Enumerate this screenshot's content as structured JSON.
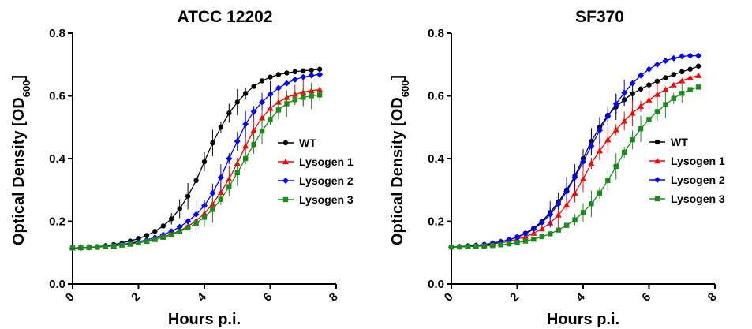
{
  "chart_data": [
    {
      "type": "line",
      "title": "ATCC 12202",
      "xlabel": "Hours p.i.",
      "ylabel": "Optical Density [OD",
      "ylabel_sub": "600",
      "ylabel_close": "]",
      "xlim": [
        0,
        8
      ],
      "ylim": [
        0,
        0.8
      ],
      "xticks": [
        "0",
        "2",
        "4",
        "6",
        "8"
      ],
      "yticks": [
        "0.0",
        "0.2",
        "0.4",
        "0.6",
        "0.8"
      ],
      "grid": false,
      "legend": "right",
      "x": [
        0,
        0.25,
        0.5,
        0.75,
        1,
        1.25,
        1.5,
        1.75,
        2,
        2.25,
        2.5,
        2.75,
        3,
        3.25,
        3.5,
        3.75,
        4,
        4.25,
        4.5,
        4.75,
        5,
        5.25,
        5.5,
        5.75,
        6,
        6.25,
        6.5,
        6.75,
        7,
        7.25,
        7.5
      ],
      "series": [
        {
          "name": "WT",
          "color": "#000000",
          "marker": "circle",
          "values": [
            0.115,
            0.116,
            0.117,
            0.119,
            0.122,
            0.126,
            0.131,
            0.137,
            0.145,
            0.155,
            0.168,
            0.185,
            0.208,
            0.24,
            0.28,
            0.33,
            0.39,
            0.45,
            0.5,
            0.545,
            0.58,
            0.608,
            0.63,
            0.648,
            0.66,
            0.668,
            0.673,
            0.677,
            0.68,
            0.682,
            0.685
          ]
        },
        {
          "name": "Lysogen 1",
          "color": "#ff0000",
          "marker": "triangle",
          "values": [
            0.115,
            0.116,
            0.117,
            0.118,
            0.12,
            0.122,
            0.125,
            0.128,
            0.132,
            0.137,
            0.143,
            0.15,
            0.159,
            0.17,
            0.184,
            0.202,
            0.225,
            0.255,
            0.292,
            0.335,
            0.385,
            0.44,
            0.49,
            0.53,
            0.56,
            0.58,
            0.595,
            0.605,
            0.612,
            0.617,
            0.62
          ]
        },
        {
          "name": "Lysogen 2",
          "color": "#0000ff",
          "marker": "diamond",
          "values": [
            0.115,
            0.116,
            0.117,
            0.118,
            0.12,
            0.123,
            0.126,
            0.13,
            0.135,
            0.141,
            0.148,
            0.157,
            0.168,
            0.182,
            0.2,
            0.222,
            0.25,
            0.29,
            0.34,
            0.4,
            0.455,
            0.51,
            0.55,
            0.58,
            0.605,
            0.625,
            0.64,
            0.652,
            0.66,
            0.665,
            0.668
          ]
        },
        {
          "name": "Lysogen 3",
          "color": "#1a8c1a",
          "marker": "square",
          "values": [
            0.115,
            0.116,
            0.117,
            0.118,
            0.119,
            0.121,
            0.124,
            0.127,
            0.131,
            0.136,
            0.142,
            0.149,
            0.157,
            0.167,
            0.179,
            0.194,
            0.213,
            0.238,
            0.27,
            0.31,
            0.355,
            0.4,
            0.445,
            0.488,
            0.525,
            0.555,
            0.575,
            0.588,
            0.595,
            0.6,
            0.603
          ]
        }
      ]
    },
    {
      "type": "line",
      "title": "SF370",
      "xlabel": "Hours p.i.",
      "ylabel": "Optical Density [OD",
      "ylabel_sub": "600",
      "ylabel_close": "]",
      "xlim": [
        0,
        8
      ],
      "ylim": [
        0,
        0.8
      ],
      "xticks": [
        "0",
        "2",
        "4",
        "6",
        "8"
      ],
      "yticks": [
        "0.0",
        "0.2",
        "0.4",
        "0.6",
        "0.8"
      ],
      "grid": false,
      "legend": "right",
      "x": [
        0,
        0.25,
        0.5,
        0.75,
        1,
        1.25,
        1.5,
        1.75,
        2,
        2.25,
        2.5,
        2.75,
        3,
        3.25,
        3.5,
        3.75,
        4,
        4.25,
        4.5,
        4.75,
        5,
        5.25,
        5.5,
        5.75,
        6,
        6.25,
        6.5,
        6.75,
        7,
        7.25,
        7.5
      ],
      "series": [
        {
          "name": "WT",
          "color": "#000000",
          "marker": "circle",
          "values": [
            0.118,
            0.119,
            0.121,
            0.123,
            0.126,
            0.13,
            0.135,
            0.141,
            0.15,
            0.162,
            0.178,
            0.2,
            0.228,
            0.262,
            0.3,
            0.345,
            0.4,
            0.455,
            0.5,
            0.538,
            0.565,
            0.588,
            0.607,
            0.622,
            0.635,
            0.647,
            0.658,
            0.668,
            0.677,
            0.685,
            0.695
          ]
        },
        {
          "name": "Lysogen 1",
          "color": "#ff0000",
          "marker": "triangle",
          "values": [
            0.118,
            0.119,
            0.12,
            0.122,
            0.124,
            0.127,
            0.131,
            0.136,
            0.143,
            0.151,
            0.162,
            0.176,
            0.195,
            0.22,
            0.252,
            0.29,
            0.335,
            0.385,
            0.425,
            0.46,
            0.492,
            0.52,
            0.545,
            0.567,
            0.587,
            0.605,
            0.62,
            0.635,
            0.648,
            0.658,
            0.665
          ]
        },
        {
          "name": "Lysogen 2",
          "color": "#0000ff",
          "marker": "diamond",
          "values": [
            0.118,
            0.119,
            0.121,
            0.123,
            0.126,
            0.13,
            0.135,
            0.141,
            0.149,
            0.16,
            0.175,
            0.196,
            0.222,
            0.255,
            0.295,
            0.34,
            0.39,
            0.44,
            0.49,
            0.535,
            0.575,
            0.61,
            0.64,
            0.665,
            0.685,
            0.7,
            0.712,
            0.72,
            0.726,
            0.728,
            0.728
          ]
        },
        {
          "name": "Lysogen 3",
          "color": "#1a8c1a",
          "marker": "square",
          "values": [
            0.118,
            0.118,
            0.119,
            0.12,
            0.121,
            0.123,
            0.125,
            0.128,
            0.132,
            0.137,
            0.143,
            0.151,
            0.16,
            0.172,
            0.187,
            0.205,
            0.228,
            0.256,
            0.29,
            0.33,
            0.375,
            0.42,
            0.46,
            0.495,
            0.525,
            0.55,
            0.572,
            0.592,
            0.608,
            0.62,
            0.628
          ]
        }
      ]
    }
  ]
}
